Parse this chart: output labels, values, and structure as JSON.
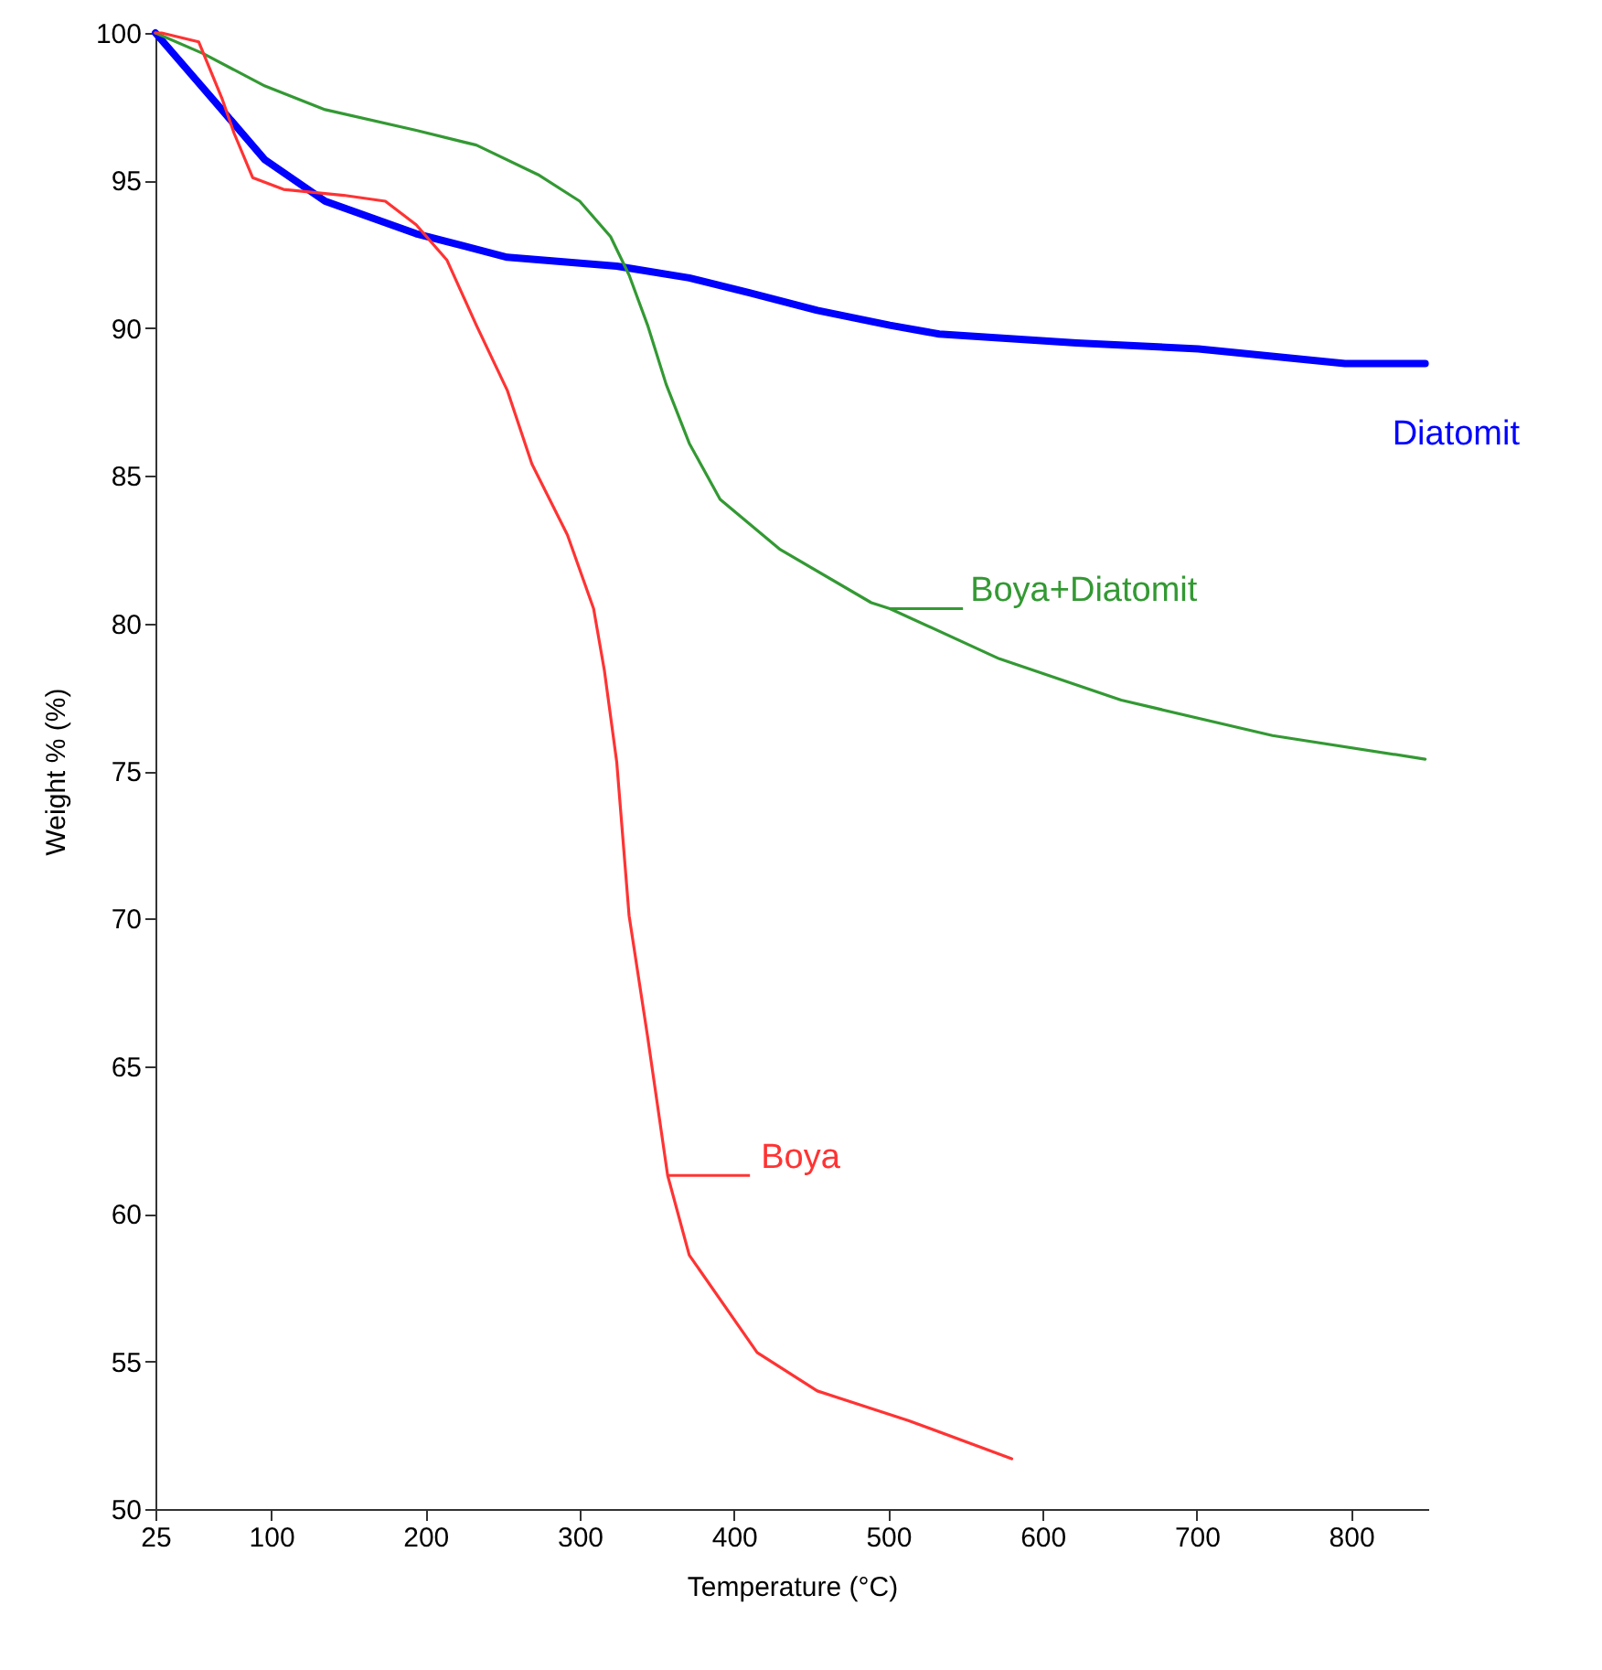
{
  "chart_data": {
    "type": "line",
    "xlabel": "Temperature (°C)",
    "ylabel": "Weight % (%)",
    "xlim": [
      25,
      850
    ],
    "xticks": [
      25,
      100,
      200,
      300,
      400,
      500,
      600,
      700,
      800
    ],
    "ylim": [
      50,
      100
    ],
    "yticks": [
      50,
      55,
      60,
      65,
      70,
      75,
      80,
      85,
      90,
      95,
      100
    ],
    "grid": false,
    "legend": "right",
    "marker": "none",
    "line_style": "solid",
    "series": [
      {
        "name": "Diatomit",
        "color": "#0000ff",
        "x": [
          25,
          68,
          96,
          135,
          194,
          253,
          324,
          371,
          410,
          454,
          501,
          533,
          622,
          701,
          796,
          848
        ],
        "values": [
          100,
          97.4,
          95.7,
          94.3,
          93.2,
          92.4,
          92.1,
          91.7,
          91.2,
          90.6,
          90.1,
          89.8,
          89.5,
          89.3,
          88.8,
          88.8
        ]
      },
      {
        "name": "Boya+Diatomit",
        "color": "#339933",
        "x": [
          25,
          56,
          96,
          135,
          194,
          233,
          273,
          300,
          320,
          332,
          344,
          356,
          371,
          391,
          430,
          489,
          501,
          572,
          651,
          749,
          848
        ],
        "values": [
          100,
          99.3,
          98.2,
          97.4,
          96.7,
          96.2,
          95.2,
          94.3,
          93.1,
          91.8,
          90.1,
          88.1,
          86.1,
          84.2,
          82.5,
          80.7,
          80.5,
          78.8,
          77.4,
          76.2,
          75.4
        ]
      },
      {
        "name": "Boya",
        "color": "#ff3333",
        "x": [
          25,
          29,
          53,
          68,
          76,
          88,
          108,
          147,
          174,
          194,
          214,
          233,
          253,
          269,
          292,
          309,
          316,
          324,
          332,
          344,
          357,
          371,
          415,
          454,
          513,
          580
        ],
        "values": [
          100,
          100,
          99.7,
          97.8,
          96.6,
          95.1,
          94.7,
          94.5,
          94.3,
          93.5,
          92.3,
          90.1,
          87.9,
          85.4,
          83.0,
          80.5,
          78.4,
          75.3,
          70.1,
          66.0,
          61.3,
          58.6,
          55.3,
          54.0,
          53.0,
          51.7
        ]
      }
    ]
  }
}
